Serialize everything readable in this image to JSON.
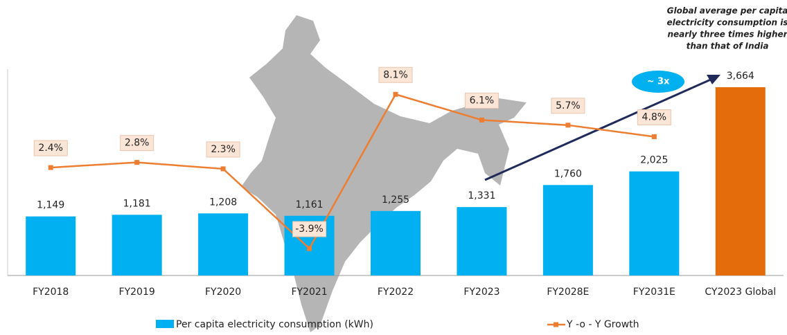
{
  "chart_data": {
    "type": "bar_line",
    "categories": [
      "FY2018",
      "FY2019",
      "FY2020",
      "FY2021",
      "FY2022",
      "FY2023",
      "FY2028E",
      "FY2031E",
      "CY2023 Global"
    ],
    "series": [
      {
        "name": "Per capita electricity consumption (kWh)",
        "type": "bar",
        "color": "#00b0f0",
        "colors": [
          "#00b0f0",
          "#00b0f0",
          "#00b0f0",
          "#00b0f0",
          "#00b0f0",
          "#00b0f0",
          "#00b0f0",
          "#00b0f0",
          "#e46c0a"
        ],
        "values": [
          1149,
          1181,
          1208,
          1161,
          1255,
          1331,
          1760,
          2025,
          3664
        ],
        "value_labels": [
          "1,149",
          "1,181",
          "1,208",
          "1,161",
          "1,255",
          "1,331",
          "1,760",
          "2,025",
          "3,664"
        ]
      },
      {
        "name": "Y -o - Y Growth",
        "type": "line",
        "axis": "y2",
        "color": "#ed7d31",
        "values": [
          2.4,
          2.8,
          2.3,
          -3.9,
          8.1,
          6.1,
          5.7,
          4.8,
          null
        ],
        "value_labels": [
          "2.4%",
          "2.8%",
          "2.3%",
          "-3.9%",
          "8.1%",
          "6.1%",
          "5.7%",
          "4.8%",
          null
        ]
      }
    ],
    "ylim": [
      0,
      4000
    ],
    "y2lim": [
      -6,
      10
    ],
    "annotation": [
      "Global average per capita",
      "electricity consumption is",
      "nearly three times higher",
      "than that of India"
    ],
    "callout": "~ 3x",
    "legend": "bottom"
  }
}
